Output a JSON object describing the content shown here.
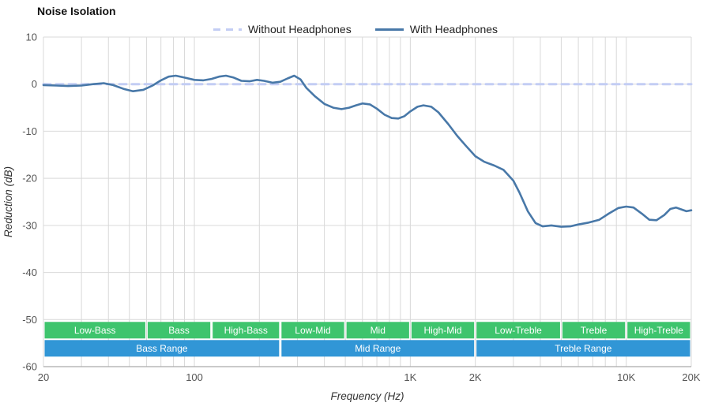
{
  "chart": {
    "title": "Noise Isolation",
    "xlabel": "Frequency (Hz)",
    "ylabel": "Reduction (dB)"
  },
  "legend": [
    {
      "label": "Without Headphones",
      "color": "#c3cdf4",
      "style": "dashed"
    },
    {
      "label": "With Headphones",
      "color": "#4878a8",
      "style": "solid"
    }
  ],
  "colors": {
    "gridline": "#d9d9d9",
    "axis_line": "#aaaaaa",
    "tick_text": "#555555",
    "axis_title_text": "#333333",
    "band_green": "#3ec46d",
    "range_blue": "#3196d6",
    "band_text": "#ffffff"
  },
  "chart_data": {
    "type": "line",
    "title": "Noise Isolation",
    "xlabel": "Frequency (Hz)",
    "ylabel": "Reduction (dB)",
    "x_scale": "log",
    "x_range": [
      20,
      20000
    ],
    "y_range": [
      -60,
      10
    ],
    "grid": true,
    "legend_position": "top-center",
    "x_ticks": [
      {
        "value": 20,
        "label": "20"
      },
      {
        "value": 100,
        "label": "100"
      },
      {
        "value": 1000,
        "label": "1K"
      },
      {
        "value": 2000,
        "label": "2K"
      },
      {
        "value": 10000,
        "label": "10K"
      },
      {
        "value": 20000,
        "label": "20K"
      }
    ],
    "y_ticks": [
      {
        "value": 10,
        "label": "10"
      },
      {
        "value": 0,
        "label": "0"
      },
      {
        "value": -10,
        "label": "-10"
      },
      {
        "value": -20,
        "label": "-20"
      },
      {
        "value": -30,
        "label": "-30"
      },
      {
        "value": -40,
        "label": "-40"
      },
      {
        "value": -50,
        "label": "-50"
      },
      {
        "value": -60,
        "label": "-60"
      }
    ],
    "x_gridlines": [
      20,
      30,
      40,
      50,
      60,
      70,
      80,
      90,
      100,
      200,
      300,
      400,
      500,
      600,
      700,
      800,
      900,
      1000,
      2000,
      3000,
      4000,
      5000,
      6000,
      7000,
      8000,
      9000,
      10000,
      20000
    ],
    "series": [
      {
        "name": "Without Headphones",
        "color": "#c3cdf4",
        "dash": "9 7",
        "width": 3,
        "points": [
          [
            20,
            0
          ],
          [
            20000,
            0
          ]
        ]
      },
      {
        "name": "With Headphones",
        "color": "#4878a8",
        "dash": null,
        "width": 2.6,
        "points": [
          [
            20,
            -0.2
          ],
          [
            23,
            -0.3
          ],
          [
            26,
            -0.4
          ],
          [
            30,
            -0.3
          ],
          [
            34,
            0
          ],
          [
            38,
            0.2
          ],
          [
            42,
            -0.2
          ],
          [
            47,
            -1.0
          ],
          [
            52,
            -1.5
          ],
          [
            58,
            -1.2
          ],
          [
            64,
            -0.3
          ],
          [
            70,
            0.8
          ],
          [
            76,
            1.6
          ],
          [
            82,
            1.8
          ],
          [
            90,
            1.4
          ],
          [
            100,
            0.9
          ],
          [
            110,
            0.8
          ],
          [
            120,
            1.1
          ],
          [
            130,
            1.6
          ],
          [
            140,
            1.8
          ],
          [
            152,
            1.4
          ],
          [
            165,
            0.7
          ],
          [
            180,
            0.6
          ],
          [
            195,
            0.9
          ],
          [
            210,
            0.7
          ],
          [
            230,
            0.3
          ],
          [
            250,
            0.5
          ],
          [
            270,
            1.2
          ],
          [
            290,
            1.8
          ],
          [
            310,
            1.0
          ],
          [
            330,
            -0.8
          ],
          [
            360,
            -2.5
          ],
          [
            400,
            -4.2
          ],
          [
            440,
            -5.0
          ],
          [
            480,
            -5.3
          ],
          [
            520,
            -5.0
          ],
          [
            560,
            -4.5
          ],
          [
            600,
            -4.1
          ],
          [
            650,
            -4.3
          ],
          [
            700,
            -5.2
          ],
          [
            760,
            -6.5
          ],
          [
            820,
            -7.2
          ],
          [
            880,
            -7.3
          ],
          [
            940,
            -6.8
          ],
          [
            1000,
            -5.8
          ],
          [
            1080,
            -4.8
          ],
          [
            1150,
            -4.5
          ],
          [
            1250,
            -4.8
          ],
          [
            1350,
            -6.0
          ],
          [
            1500,
            -8.5
          ],
          [
            1650,
            -11.0
          ],
          [
            1800,
            -13.0
          ],
          [
            2000,
            -15.3
          ],
          [
            2200,
            -16.5
          ],
          [
            2450,
            -17.3
          ],
          [
            2700,
            -18.2
          ],
          [
            3000,
            -20.5
          ],
          [
            3200,
            -23.0
          ],
          [
            3500,
            -27.0
          ],
          [
            3800,
            -29.5
          ],
          [
            4100,
            -30.2
          ],
          [
            4500,
            -30.0
          ],
          [
            5000,
            -30.3
          ],
          [
            5500,
            -30.2
          ],
          [
            6000,
            -29.8
          ],
          [
            6700,
            -29.4
          ],
          [
            7500,
            -28.8
          ],
          [
            8300,
            -27.5
          ],
          [
            9200,
            -26.3
          ],
          [
            10000,
            -26.0
          ],
          [
            10800,
            -26.2
          ],
          [
            11800,
            -27.5
          ],
          [
            12800,
            -28.8
          ],
          [
            13800,
            -28.9
          ],
          [
            15000,
            -27.8
          ],
          [
            16000,
            -26.5
          ],
          [
            17000,
            -26.2
          ],
          [
            18000,
            -26.6
          ],
          [
            19000,
            -27.0
          ],
          [
            20000,
            -26.8
          ]
        ]
      }
    ],
    "bands": [
      {
        "label": "Low-Bass",
        "from": 20,
        "to": 60
      },
      {
        "label": "Bass",
        "from": 60,
        "to": 120
      },
      {
        "label": "High-Bass",
        "from": 120,
        "to": 250
      },
      {
        "label": "Low-Mid",
        "from": 250,
        "to": 500
      },
      {
        "label": "Mid",
        "from": 500,
        "to": 1000
      },
      {
        "label": "High-Mid",
        "from": 1000,
        "to": 2000
      },
      {
        "label": "Low-Treble",
        "from": 2000,
        "to": 5000
      },
      {
        "label": "Treble",
        "from": 5000,
        "to": 10000
      },
      {
        "label": "High-Treble",
        "from": 10000,
        "to": 20000
      }
    ],
    "ranges": [
      {
        "label": "Bass Range",
        "from": 20,
        "to": 250
      },
      {
        "label": "Mid Range",
        "from": 250,
        "to": 2000
      },
      {
        "label": "Treble Range",
        "from": 2000,
        "to": 20000
      }
    ]
  }
}
